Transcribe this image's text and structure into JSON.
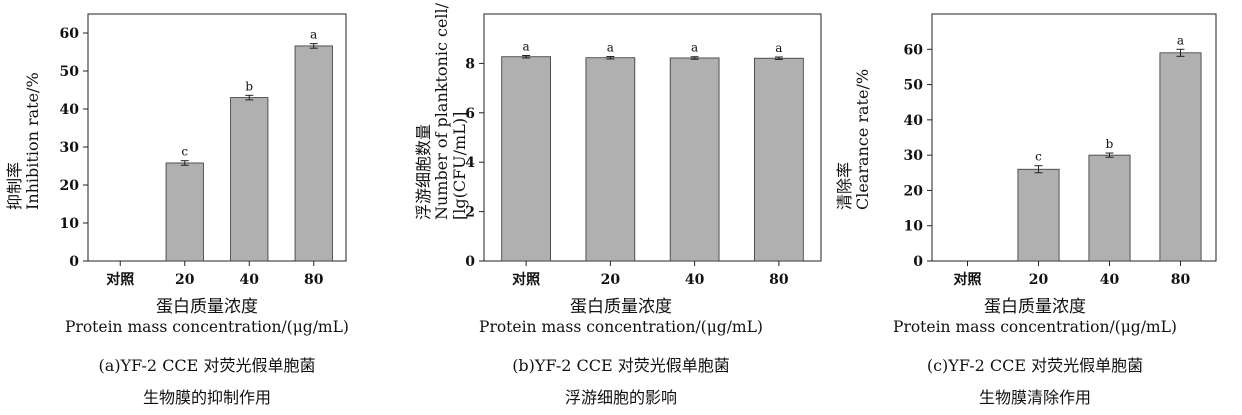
{
  "panels": [
    {
      "x_label_cn": "蛋白质量浓度",
      "x_label_en": "Protein mass concentration/(μg/mL)",
      "y_label_lines": [
        "抑制率",
        "Inhibition rate/%"
      ],
      "caption_line1": "(a)YF-2 CCE 对荧光假单胞菌",
      "caption_line2": "生物膜的抑制作用"
    },
    {
      "x_label_cn": "蛋白质量浓度",
      "x_label_en": "Protein mass concentration/(μg/mL)",
      "y_label_lines": [
        "浮游细胞数量",
        "Number of planktonic cell/",
        "[lg(CFU/mL)]"
      ],
      "caption_line1": "(b)YF-2 CCE 对荧光假单胞菌",
      "caption_line2": "浮游细胞的影响"
    },
    {
      "x_label_cn": "蛋白质量浓度",
      "x_label_en": "Protein mass concentration/(μg/mL)",
      "y_label_lines": [
        "清除率",
        "Clearance rate/%"
      ],
      "caption_line1": "(c)YF-2 CCE 对荧光假单胞菌",
      "caption_line2": "生物膜清除作用"
    }
  ],
  "chart_data": [
    {
      "type": "bar",
      "categories": [
        "对照",
        "20",
        "40",
        "80"
      ],
      "values": [
        0,
        25.8,
        43.0,
        56.6
      ],
      "errors": [
        0,
        0.6,
        0.6,
        0.6
      ],
      "letters": [
        "",
        "c",
        "b",
        "a"
      ],
      "ylim": [
        0,
        65
      ],
      "yticks": [
        0,
        10,
        20,
        30,
        40,
        50,
        60
      ],
      "bar_color": "#b0b0b0"
    },
    {
      "type": "bar",
      "categories": [
        "对照",
        "20",
        "40",
        "80"
      ],
      "values": [
        8.27,
        8.23,
        8.22,
        8.21
      ],
      "errors": [
        0.05,
        0.05,
        0.05,
        0.05
      ],
      "letters": [
        "a",
        "a",
        "a",
        "a"
      ],
      "ylim": [
        0,
        10
      ],
      "yticks": [
        0,
        2,
        4,
        6,
        8
      ],
      "bar_color": "#b0b0b0"
    },
    {
      "type": "bar",
      "categories": [
        "对照",
        "20",
        "40",
        "80"
      ],
      "values": [
        0,
        26.0,
        30.0,
        59.0
      ],
      "errors": [
        0,
        1.0,
        0.6,
        1.0
      ],
      "letters": [
        "",
        "c",
        "b",
        "a"
      ],
      "ylim": [
        0,
        70
      ],
      "yticks": [
        0,
        10,
        20,
        30,
        40,
        50,
        60
      ],
      "bar_color": "#b0b0b0"
    }
  ]
}
